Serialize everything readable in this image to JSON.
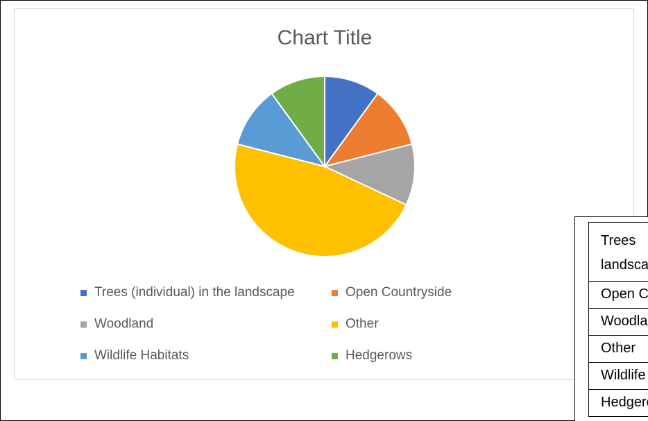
{
  "chart_data": {
    "type": "pie",
    "title": "Chart Title",
    "categories": [
      "Trees (individual) in the landscape",
      "Open Countryside",
      "Woodland",
      "Other",
      "Wildlife Habitats",
      "Hedgerows"
    ],
    "values": [
      10,
      11,
      11,
      47,
      11,
      10
    ],
    "colors": [
      "#4472c4",
      "#ed7d31",
      "#a5a5a5",
      "#ffc000",
      "#5b9bd5",
      "#70ad47"
    ],
    "legend": "bottom"
  }
}
